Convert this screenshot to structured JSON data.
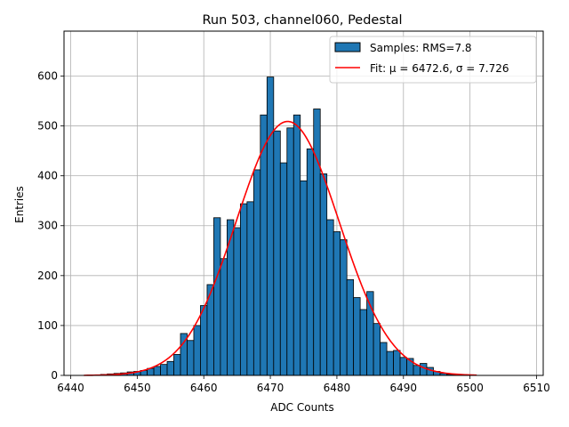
{
  "chart_data": {
    "type": "bar",
    "title": "Run 503, channel060, Pedestal",
    "xlabel": "ADC Counts",
    "ylabel": "Entries",
    "xlim": [
      6439,
      6511
    ],
    "ylim": [
      0,
      690
    ],
    "xticks": [
      6440,
      6450,
      6460,
      6470,
      6480,
      6490,
      6500,
      6510
    ],
    "yticks": [
      0,
      100,
      200,
      300,
      400,
      500,
      600
    ],
    "grid": true,
    "legend_position": "top-right",
    "bin_width": 1,
    "bin_centers": [
      6443,
      6444,
      6445,
      6446,
      6447,
      6448,
      6449,
      6450,
      6451,
      6452,
      6453,
      6454,
      6455,
      6456,
      6457,
      6458,
      6459,
      6460,
      6461,
      6462,
      6463,
      6464,
      6465,
      6466,
      6467,
      6468,
      6469,
      6470,
      6471,
      6472,
      6473,
      6474,
      6475,
      6476,
      6477,
      6478,
      6479,
      6480,
      6481,
      6482,
      6483,
      6484,
      6485,
      6486,
      6487,
      6488,
      6489,
      6490,
      6491,
      6492,
      6493,
      6494,
      6495,
      6496,
      6497,
      6498,
      6499,
      6500
    ],
    "counts": [
      1,
      1,
      2,
      3,
      4,
      5,
      7,
      8,
      10,
      14,
      18,
      22,
      28,
      42,
      84,
      70,
      100,
      140,
      182,
      316,
      234,
      312,
      296,
      344,
      348,
      412,
      522,
      598,
      490,
      426,
      496,
      522,
      390,
      454,
      534,
      404,
      312,
      288,
      272,
      192,
      156,
      132,
      168,
      104,
      66,
      48,
      50,
      36,
      34,
      20,
      24,
      16,
      8,
      4,
      2,
      1,
      1,
      1
    ],
    "series": [
      {
        "name": "Samples: RMS=7.8",
        "type": "histogram",
        "color": "#1f77b4",
        "edgecolor": "#000000"
      },
      {
        "name": "Fit: μ = 6472.6, σ = 7.726",
        "type": "gaussian-fit",
        "color": "#ff0000",
        "mu": 6472.6,
        "sigma": 7.726,
        "amplitude": 509,
        "x_range": [
          6442,
          6501
        ]
      }
    ]
  }
}
